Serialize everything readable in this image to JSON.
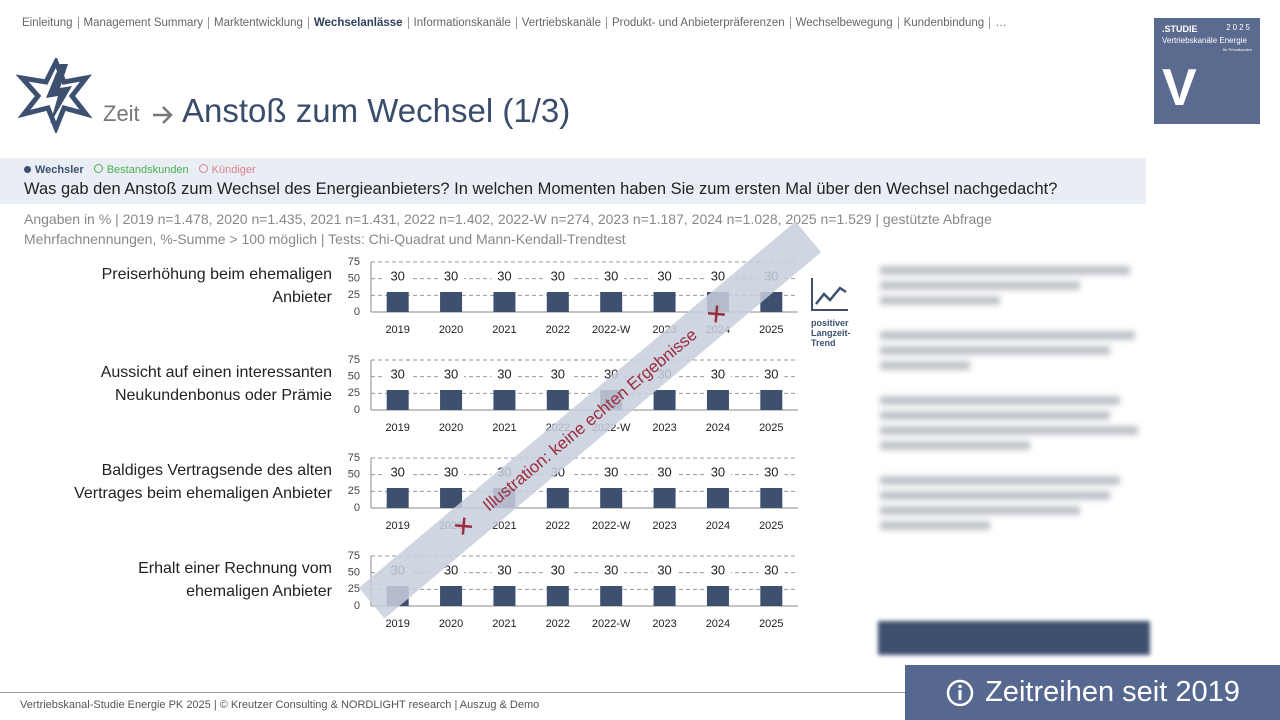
{
  "nav": [
    "Einleitung",
    "Management Summary",
    "Marktentwicklung",
    "Wechselanlässe",
    "Informationskanäle",
    "Vertriebskanäle",
    "Produkt- und Anbieterpräferenzen",
    "Wechselbewegung",
    "Kundenbindung",
    "…"
  ],
  "nav_active": 3,
  "logo": {
    "study": ".STUDIE",
    "year": "2025",
    "name": "Vertriebskanäle Energie",
    "sub": "für Privatkunden",
    "letter": "V"
  },
  "header": {
    "prefix": "Zeit",
    "title": "Anstoß zum Wechsel (1/3)"
  },
  "legend": [
    {
      "label": "Wechsler",
      "color": "#3d5070"
    },
    {
      "label": "Bestandskunden",
      "color": "#4caf50"
    },
    {
      "label": "Kündiger",
      "color": "#d9828f"
    }
  ],
  "question": "Was gab den Anstoß zum Wechsel des Energieanbieters? In welchen Momenten haben Sie zum ersten Mal über den Wechsel nachgedacht?",
  "notes": [
    "Angaben in % | 2019 n=1.478, 2020 n=1.435, 2021 n=1.431, 2022 n=1.402, 2022-W n=274, 2023 n=1.187, 2024 n=1.028, 2025 n=1.529 | gestützte Abfrage",
    "Mehrfachnennungen, %-Summe > 100 möglich | Tests: Chi-Quadrat und Mann-Kendall-Trendtest"
  ],
  "trend_label": "positiver Langzeit-Trend",
  "watermark": "Illustration: keine echten Ergebnisse",
  "badge": "Zeitreihen seit 2019",
  "footer": "Vertriebskanal-Studie Energie PK 2025 | © Kreutzer Consulting & NORDLIGHT research | Auszug & Demo",
  "chart_data": [
    {
      "type": "bar",
      "title": "Preiserhöhung beim ehemaligen Anbieter",
      "categories": [
        "2019",
        "2020",
        "2021",
        "2022",
        "2022-W",
        "2023",
        "2024",
        "2025"
      ],
      "values": [
        30,
        30,
        30,
        30,
        30,
        30,
        30,
        30
      ],
      "color": "#3d5070",
      "ylim": [
        0,
        75
      ],
      "yticks": [
        0,
        25,
        50,
        75
      ],
      "grid": true
    },
    {
      "type": "bar",
      "title": "Aussicht auf einen interessanten Neukundenbonus oder Prämie",
      "categories": [
        "2019",
        "2020",
        "2021",
        "2022",
        "2022-W",
        "2023",
        "2024",
        "2025"
      ],
      "values": [
        30,
        30,
        30,
        30,
        30,
        30,
        30,
        30
      ],
      "color": "#3d5070",
      "ylim": [
        0,
        75
      ],
      "yticks": [
        0,
        25,
        50,
        75
      ],
      "grid": true
    },
    {
      "type": "bar",
      "title": "Baldiges Vertragsende des alten Vertrages beim ehemaligen Anbieter",
      "categories": [
        "2019",
        "2020",
        "2021",
        "2022",
        "2022-W",
        "2023",
        "2024",
        "2025"
      ],
      "values": [
        30,
        30,
        30,
        30,
        30,
        30,
        30,
        30
      ],
      "color": "#3d5070",
      "ylim": [
        0,
        75
      ],
      "yticks": [
        0,
        25,
        50,
        75
      ],
      "grid": true
    },
    {
      "type": "bar",
      "title": "Erhalt einer Rechnung vom ehemaligen Anbieter",
      "categories": [
        "2019",
        "2020",
        "2021",
        "2022",
        "2022-W",
        "2023",
        "2024",
        "2025"
      ],
      "values": [
        30,
        30,
        30,
        30,
        30,
        30,
        30,
        30
      ],
      "color": "#3d5070",
      "ylim": [
        0,
        75
      ],
      "yticks": [
        0,
        25,
        50,
        75
      ],
      "grid": true
    }
  ]
}
